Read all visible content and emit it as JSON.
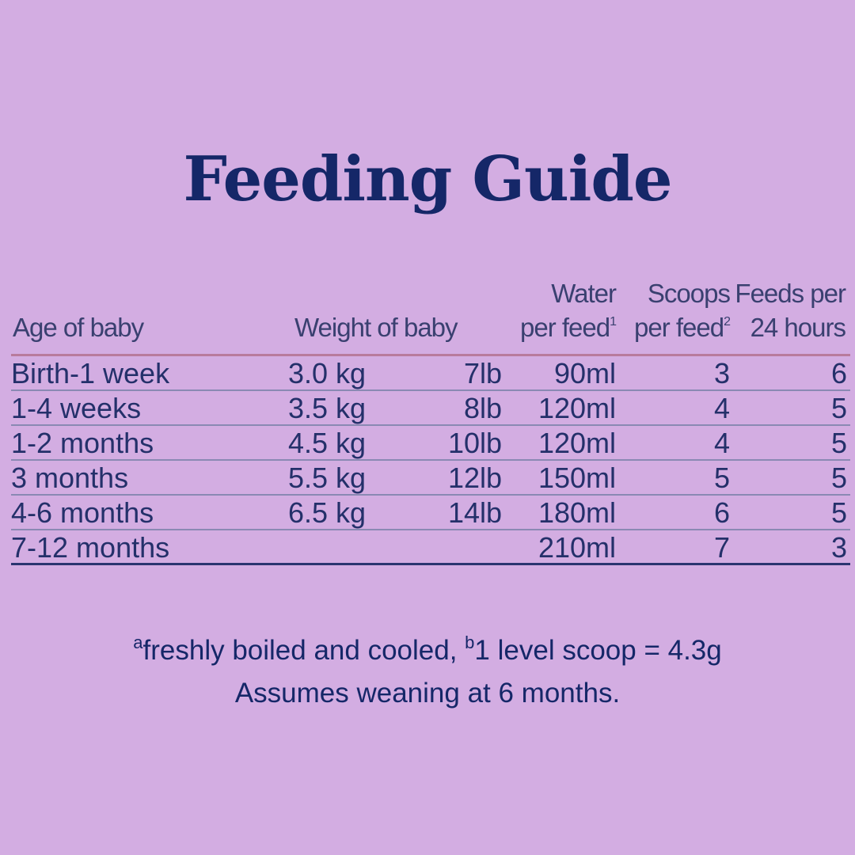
{
  "title": "Feeding Guide",
  "table": {
    "headers": {
      "age": "Age of baby",
      "weight": "Weight of baby",
      "water_line1": "Water",
      "water_line2": "per feed",
      "water_sup": "1",
      "scoops_line1": "Scoops",
      "scoops_line2": "per feed",
      "scoops_sup": "2",
      "feeds_line1": "Feeds per",
      "feeds_line2": "24 hours"
    },
    "rows": [
      {
        "age": "Birth-1 week",
        "kg": "3.0 kg",
        "lb": "7lb",
        "ml": "90ml",
        "scoops": "3",
        "feeds": "6"
      },
      {
        "age": "1-4 weeks",
        "kg": "3.5 kg",
        "lb": "8lb",
        "ml": "120ml",
        "scoops": "4",
        "feeds": "5"
      },
      {
        "age": "1-2 months",
        "kg": "4.5 kg",
        "lb": "10lb",
        "ml": "120ml",
        "scoops": "4",
        "feeds": "5"
      },
      {
        "age": "3 months",
        "kg": "5.5 kg",
        "lb": "12lb",
        "ml": "150ml",
        "scoops": "5",
        "feeds": "5"
      },
      {
        "age": "4-6 months",
        "kg": "6.5 kg",
        "lb": "14lb",
        "ml": "180ml",
        "scoops": "6",
        "feeds": "5"
      },
      {
        "age": "7-12 months",
        "kg": "",
        "lb": "",
        "ml": "210ml",
        "scoops": "7",
        "feeds": "3"
      }
    ]
  },
  "footnotes": {
    "sup_a": "a",
    "text_a": "freshly boiled and cooled, ",
    "sup_b": "b",
    "text_b": "1 level scoop = 4.3g",
    "line2": "Assumes weaning at 6 months."
  },
  "colors": {
    "background": "#d3ade2",
    "text": "#152768",
    "header_rule": "#b87b9c"
  }
}
